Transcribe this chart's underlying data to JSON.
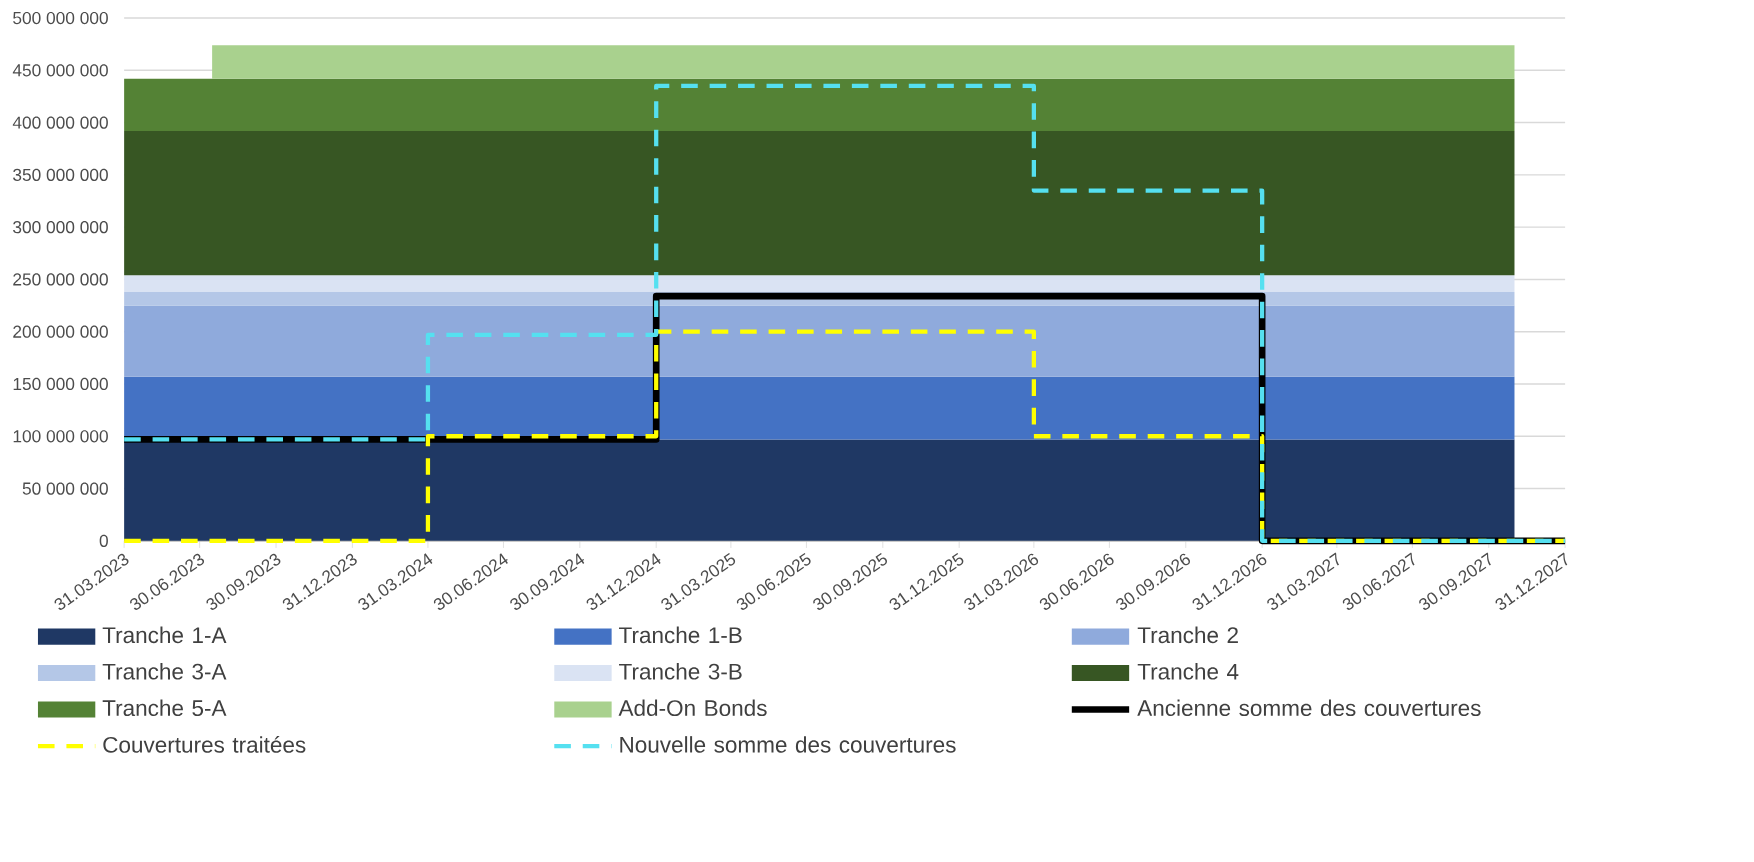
{
  "chart_data": {
    "type": "area",
    "stacked": true,
    "grid": "y",
    "legend": "bottom",
    "x": [
      "2023-03-31",
      "2023-07-15",
      "2027-10-31"
    ],
    "xlim": [
      "2023-03-31",
      "2027-12-31"
    ],
    "xticks": [
      {
        "value": "2023-03-31",
        "label": "31.03.2023"
      },
      {
        "value": "2023-06-30",
        "label": "30.06.2023"
      },
      {
        "value": "2023-09-30",
        "label": "30.09.2023"
      },
      {
        "value": "2023-12-31",
        "label": "31.12.2023"
      },
      {
        "value": "2024-03-31",
        "label": "31.03.2024"
      },
      {
        "value": "2024-06-30",
        "label": "30.06.2024"
      },
      {
        "value": "2024-09-30",
        "label": "30.09.2024"
      },
      {
        "value": "2024-12-31",
        "label": "31.12.2024"
      },
      {
        "value": "2025-03-31",
        "label": "31.03.2025"
      },
      {
        "value": "2025-06-30",
        "label": "30.06.2025"
      },
      {
        "value": "2025-09-30",
        "label": "30.09.2025"
      },
      {
        "value": "2025-12-31",
        "label": "31.12.2025"
      },
      {
        "value": "2026-03-31",
        "label": "31.03.2026"
      },
      {
        "value": "2026-06-30",
        "label": "30.06.2026"
      },
      {
        "value": "2026-09-30",
        "label": "30.09.2026"
      },
      {
        "value": "2026-12-31",
        "label": "31.12.2026"
      },
      {
        "value": "2027-03-31",
        "label": "31.03.2027"
      },
      {
        "value": "2027-06-30",
        "label": "30.06.2027"
      },
      {
        "value": "2027-09-30",
        "label": "30.09.2027"
      },
      {
        "value": "2027-12-31",
        "label": "31.12.2027"
      }
    ],
    "ylim": [
      0,
      500000000
    ],
    "yticks": [
      0,
      {
        "value": 50000000,
        "label": "50 000 000"
      },
      {
        "value": 100000000,
        "label": "100 000 000"
      },
      {
        "value": 150000000,
        "label": "150 000 000"
      },
      {
        "value": 200000000,
        "label": "200 000 000"
      },
      {
        "value": 250000000,
        "label": "250 000 000"
      },
      {
        "value": 300000000,
        "label": "300 000 000"
      },
      {
        "value": 350000000,
        "label": "350 000 000"
      },
      {
        "value": 400000000,
        "label": "400 000 000"
      },
      {
        "value": 450000000,
        "label": "450 000 000"
      },
      {
        "value": 500000000,
        "label": "500 000 000"
      }
    ],
    "series": [
      {
        "name": "Tranche 1-A",
        "color": "#1f3864",
        "values": [
          97000000,
          97000000,
          97000000
        ]
      },
      {
        "name": "Tranche 1-B",
        "color": "#4472c4",
        "values": [
          60000000,
          60000000,
          60000000
        ]
      },
      {
        "name": "Tranche 2",
        "color": "#8faadc",
        "values": [
          68000000,
          68000000,
          68000000
        ]
      },
      {
        "name": "Tranche 3-A",
        "color": "#b4c7e7",
        "values": [
          13000000,
          13000000,
          13000000
        ]
      },
      {
        "name": "Tranche 3-B",
        "color": "#dae3f3",
        "values": [
          16000000,
          16000000,
          16000000
        ]
      },
      {
        "name": "Tranche 4",
        "color": "#375623",
        "values": [
          138000000,
          138000000,
          138000000
        ]
      },
      {
        "name": "Tranche 5-A",
        "color": "#548235",
        "values": [
          50000000,
          50000000,
          50000000
        ]
      },
      {
        "name": "Add-On Bonds",
        "color": "#a9d18e",
        "values": [
          null,
          32000000,
          32000000
        ]
      },
      {
        "name": "Ancienne somme des couvertures",
        "type": "step",
        "line_style": "solid",
        "color": "#000000",
        "x": [
          "2023-03-31",
          "2024-12-31",
          "2026-12-31",
          "2027-12-31"
        ],
        "values": [
          97000000,
          234000000,
          0,
          0
        ]
      },
      {
        "name": "Couvertures traitées",
        "type": "step",
        "line_style": "dashed",
        "color": "#ffff00",
        "x": [
          "2023-03-31",
          "2024-03-31",
          "2024-12-31",
          "2026-03-31",
          "2026-12-31",
          "2027-12-31"
        ],
        "values": [
          0,
          100000000,
          200000000,
          100000000,
          0,
          0
        ]
      },
      {
        "name": "Nouvelle somme des couvertures",
        "type": "step",
        "line_style": "dashed",
        "color": "#55e0f0",
        "x": [
          "2023-03-31",
          "2024-03-31",
          "2024-12-31",
          "2026-03-31",
          "2026-12-31",
          "2027-12-31"
        ],
        "values": [
          97000000,
          197000000,
          435000000,
          335000000,
          0,
          0
        ]
      }
    ]
  }
}
